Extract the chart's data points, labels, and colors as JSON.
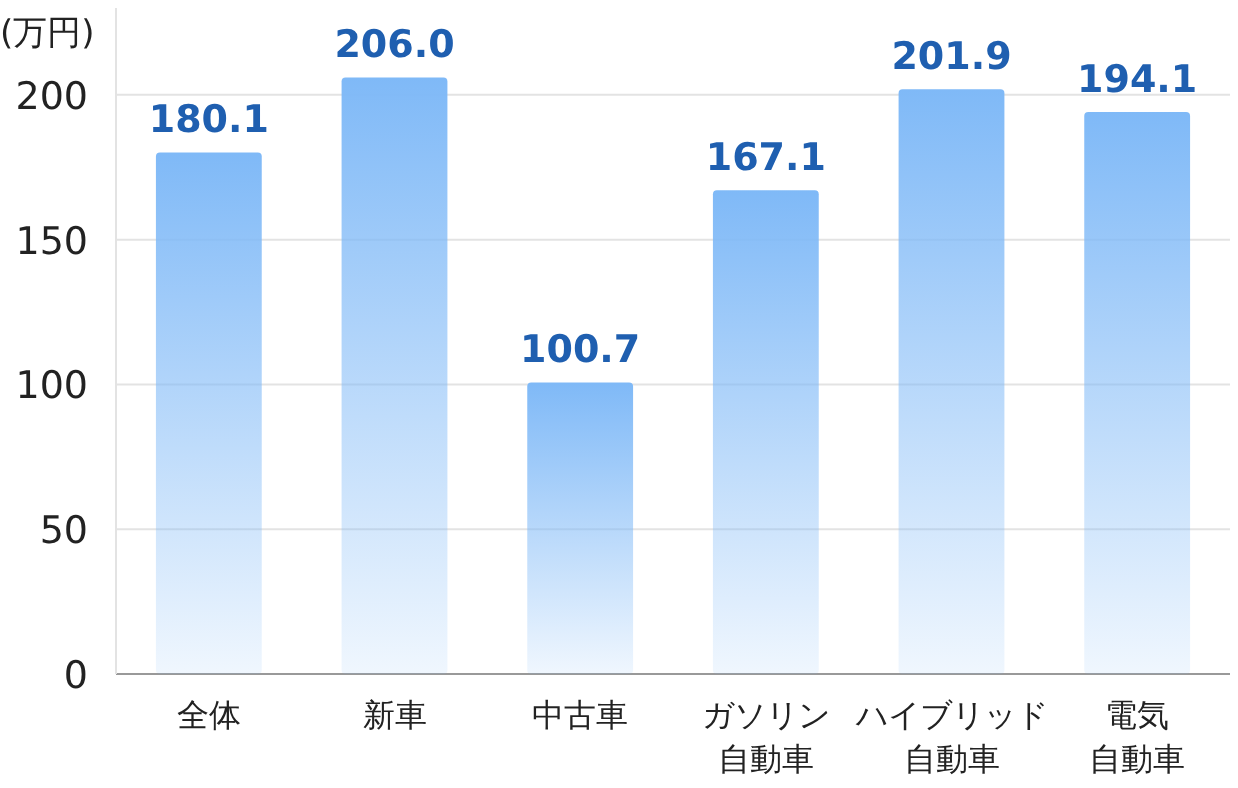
{
  "chart_data": {
    "type": "bar",
    "ylabel": "(万円)",
    "categories": [
      "全体",
      "新車",
      "中古車",
      "ガソリン自動車",
      "ハイブリッド自動車",
      "電気自動車"
    ],
    "values": [
      180.1,
      206.0,
      100.7,
      167.1,
      201.9,
      194.1
    ],
    "value_labels": [
      "180.1",
      "206.0",
      "100.7",
      "167.1",
      "201.9",
      "194.1"
    ],
    "color": "#7fb9f7",
    "ylim": [
      0,
      230
    ],
    "yticks": [
      0,
      50,
      100,
      150,
      200
    ],
    "grid": "y"
  }
}
